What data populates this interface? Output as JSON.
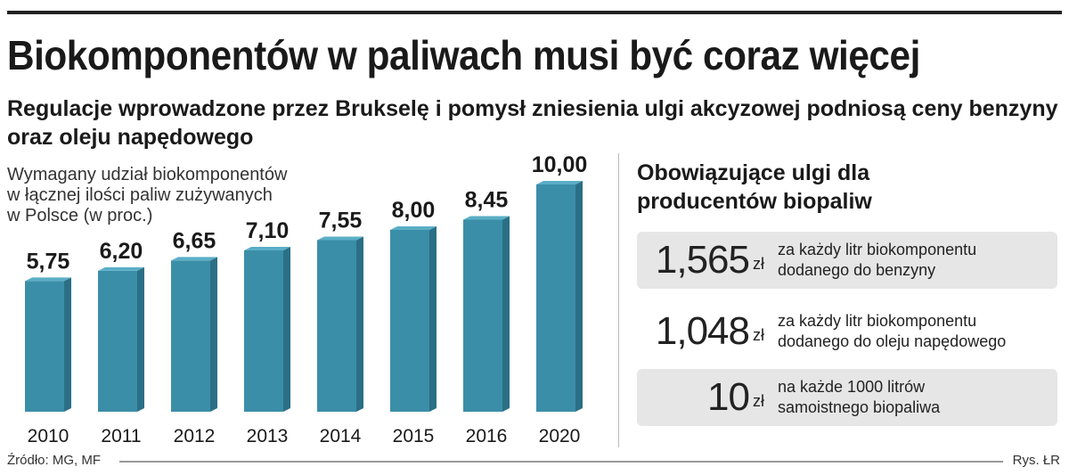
{
  "header": {
    "title": "Biokomponentów w paliwach musi być coraz więcej",
    "subtitle": "Regulacje wprowadzone przez Brukselę i pomysł zniesienia ulgi akcyzowej podniosą ceny benzyny oraz oleju napędowego"
  },
  "chart_data": {
    "type": "bar",
    "title": "Wymagany udział biokomponentów\nw łącznej ilości paliw zużywanych\nw Polsce (w proc.)",
    "categories": [
      "2010",
      "2011",
      "2012",
      "2013",
      "2014",
      "2015",
      "2016",
      "2020"
    ],
    "values": [
      5.75,
      6.2,
      6.65,
      7.1,
      7.55,
      8.0,
      8.45,
      10.0
    ],
    "value_labels": [
      "5,75",
      "6,20",
      "6,65",
      "7,10",
      "7,55",
      "8,00",
      "8,45",
      "10,00"
    ],
    "ylim": [
      0,
      10
    ],
    "grid": false,
    "legend": "none",
    "bar_color": "#3b8ea8",
    "bar_side_color": "#2b6f86",
    "bar_top_color": "#5aaec6"
  },
  "reliefs": {
    "title": "Obowiązujące ulgi dla\nproducentów biopaliw",
    "items": [
      {
        "amount": "1,565",
        "unit": "zł",
        "line1": "za każdy litr biokomponentu",
        "line2": "dodanego do benzyny",
        "shaded": true
      },
      {
        "amount": "1,048",
        "unit": "zł",
        "line1": "za każdy litr biokomponentu",
        "line2": "dodanego do oleju napędowego",
        "shaded": false
      },
      {
        "amount": "10",
        "unit": "zł",
        "line1": "na każde 1000 litrów",
        "line2": "samoistnego biopaliwa",
        "shaded": true
      }
    ]
  },
  "footer": {
    "source": "Źródło: MG, MF",
    "credit": "Rys. ŁR"
  }
}
